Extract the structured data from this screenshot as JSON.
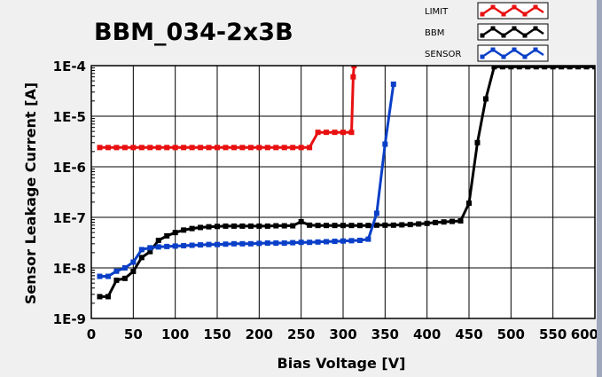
{
  "chart_data": {
    "type": "line",
    "title": "BBM_034-2x3B",
    "xlabel": "Bias Voltage [V]",
    "ylabel": "Sensor Leakage Current [A]",
    "xlim": [
      0,
      600
    ],
    "ylim": [
      1e-09,
      0.0001
    ],
    "yscale": "log",
    "grid": true,
    "legend_position": "top-right",
    "x_ticks": [
      0,
      50,
      100,
      150,
      200,
      250,
      300,
      350,
      400,
      450,
      500,
      550,
      600
    ],
    "x_tick_labels": [
      "0",
      "50",
      "100",
      "150",
      "200",
      "250",
      "300",
      "350",
      "400",
      "450",
      "500",
      "550",
      "600"
    ],
    "y_ticks": [
      1e-09,
      1e-08,
      1e-07,
      1e-06,
      1e-05,
      0.0001
    ],
    "y_tick_labels": [
      "1E-9",
      "1E-8",
      "1E-7",
      "1E-6",
      "1E-5",
      "1E-4"
    ],
    "series": [
      {
        "name": "LIMIT",
        "color": "#e81010",
        "points": [
          [
            10,
            2.4e-06
          ],
          [
            20,
            2.4e-06
          ],
          [
            30,
            2.4e-06
          ],
          [
            40,
            2.4e-06
          ],
          [
            50,
            2.4e-06
          ],
          [
            60,
            2.4e-06
          ],
          [
            70,
            2.4e-06
          ],
          [
            80,
            2.4e-06
          ],
          [
            90,
            2.4e-06
          ],
          [
            100,
            2.4e-06
          ],
          [
            110,
            2.4e-06
          ],
          [
            120,
            2.4e-06
          ],
          [
            130,
            2.4e-06
          ],
          [
            140,
            2.4e-06
          ],
          [
            150,
            2.4e-06
          ],
          [
            160,
            2.4e-06
          ],
          [
            170,
            2.4e-06
          ],
          [
            180,
            2.4e-06
          ],
          [
            190,
            2.4e-06
          ],
          [
            200,
            2.4e-06
          ],
          [
            210,
            2.4e-06
          ],
          [
            220,
            2.4e-06
          ],
          [
            230,
            2.4e-06
          ],
          [
            240,
            2.4e-06
          ],
          [
            250,
            2.4e-06
          ],
          [
            260,
            2.4e-06
          ],
          [
            270,
            4.8e-06
          ],
          [
            280,
            4.8e-06
          ],
          [
            290,
            4.8e-06
          ],
          [
            300,
            4.8e-06
          ],
          [
            310,
            4.8e-06
          ],
          [
            312,
            6e-05
          ],
          [
            313,
            0.0001
          ]
        ]
      },
      {
        "name": "BBM",
        "color": "#000000",
        "points": [
          [
            10,
            2.7e-09
          ],
          [
            20,
            2.7e-09
          ],
          [
            30,
            5.7e-09
          ],
          [
            40,
            6.2e-09
          ],
          [
            50,
            8.5e-09
          ],
          [
            60,
            1.6e-08
          ],
          [
            70,
            2.1e-08
          ],
          [
            80,
            3.5e-08
          ],
          [
            90,
            4.3e-08
          ],
          [
            100,
            5e-08
          ],
          [
            110,
            5.6e-08
          ],
          [
            120,
            6e-08
          ],
          [
            130,
            6.3e-08
          ],
          [
            140,
            6.5e-08
          ],
          [
            150,
            6.6e-08
          ],
          [
            160,
            6.7e-08
          ],
          [
            170,
            6.7e-08
          ],
          [
            180,
            6.7e-08
          ],
          [
            190,
            6.7e-08
          ],
          [
            200,
            6.7e-08
          ],
          [
            210,
            6.7e-08
          ],
          [
            220,
            6.8e-08
          ],
          [
            230,
            6.8e-08
          ],
          [
            240,
            6.8e-08
          ],
          [
            250,
            8.2e-08
          ],
          [
            260,
            7e-08
          ],
          [
            270,
            6.9e-08
          ],
          [
            280,
            6.9e-08
          ],
          [
            290,
            6.9e-08
          ],
          [
            300,
            6.9e-08
          ],
          [
            310,
            6.9e-08
          ],
          [
            320,
            6.9e-08
          ],
          [
            330,
            6.9e-08
          ],
          [
            340,
            7e-08
          ],
          [
            350,
            7e-08
          ],
          [
            360,
            7e-08
          ],
          [
            370,
            7.1e-08
          ],
          [
            380,
            7.2e-08
          ],
          [
            390,
            7.4e-08
          ],
          [
            400,
            7.6e-08
          ],
          [
            410,
            7.9e-08
          ],
          [
            420,
            8.1e-08
          ],
          [
            430,
            8.3e-08
          ],
          [
            440,
            8.5e-08
          ],
          [
            450,
            1.9e-07
          ],
          [
            460,
            3e-06
          ],
          [
            470,
            2.2e-05
          ],
          [
            480,
            9.5e-05
          ],
          [
            490,
            9.5e-05
          ],
          [
            500,
            9.5e-05
          ],
          [
            510,
            9.5e-05
          ],
          [
            520,
            9.5e-05
          ],
          [
            530,
            9.5e-05
          ],
          [
            540,
            9.5e-05
          ],
          [
            550,
            9.5e-05
          ],
          [
            560,
            9.5e-05
          ],
          [
            570,
            9.5e-05
          ],
          [
            580,
            9.5e-05
          ],
          [
            590,
            9.5e-05
          ],
          [
            600,
            9.5e-05
          ]
        ]
      },
      {
        "name": "SENSOR",
        "color": "#0a3fc8",
        "points": [
          [
            10,
            6.8e-09
          ],
          [
            20,
            6.8e-09
          ],
          [
            30,
            8.6e-09
          ],
          [
            40,
            1e-08
          ],
          [
            50,
            1.3e-08
          ],
          [
            60,
            2.3e-08
          ],
          [
            70,
            2.5e-08
          ],
          [
            80,
            2.6e-08
          ],
          [
            90,
            2.65e-08
          ],
          [
            100,
            2.7e-08
          ],
          [
            110,
            2.75e-08
          ],
          [
            120,
            2.8e-08
          ],
          [
            130,
            2.85e-08
          ],
          [
            140,
            2.9e-08
          ],
          [
            150,
            2.9e-08
          ],
          [
            160,
            2.95e-08
          ],
          [
            170,
            3e-08
          ],
          [
            180,
            3e-08
          ],
          [
            190,
            3e-08
          ],
          [
            200,
            3.05e-08
          ],
          [
            210,
            3.1e-08
          ],
          [
            220,
            3.1e-08
          ],
          [
            230,
            3.1e-08
          ],
          [
            240,
            3.15e-08
          ],
          [
            250,
            3.2e-08
          ],
          [
            260,
            3.2e-08
          ],
          [
            270,
            3.25e-08
          ],
          [
            280,
            3.3e-08
          ],
          [
            290,
            3.35e-08
          ],
          [
            300,
            3.4e-08
          ],
          [
            310,
            3.45e-08
          ],
          [
            320,
            3.5e-08
          ],
          [
            330,
            3.7e-08
          ],
          [
            340,
            1.2e-07
          ],
          [
            350,
            2.8e-06
          ],
          [
            360,
            4.3e-05
          ]
        ]
      }
    ]
  }
}
